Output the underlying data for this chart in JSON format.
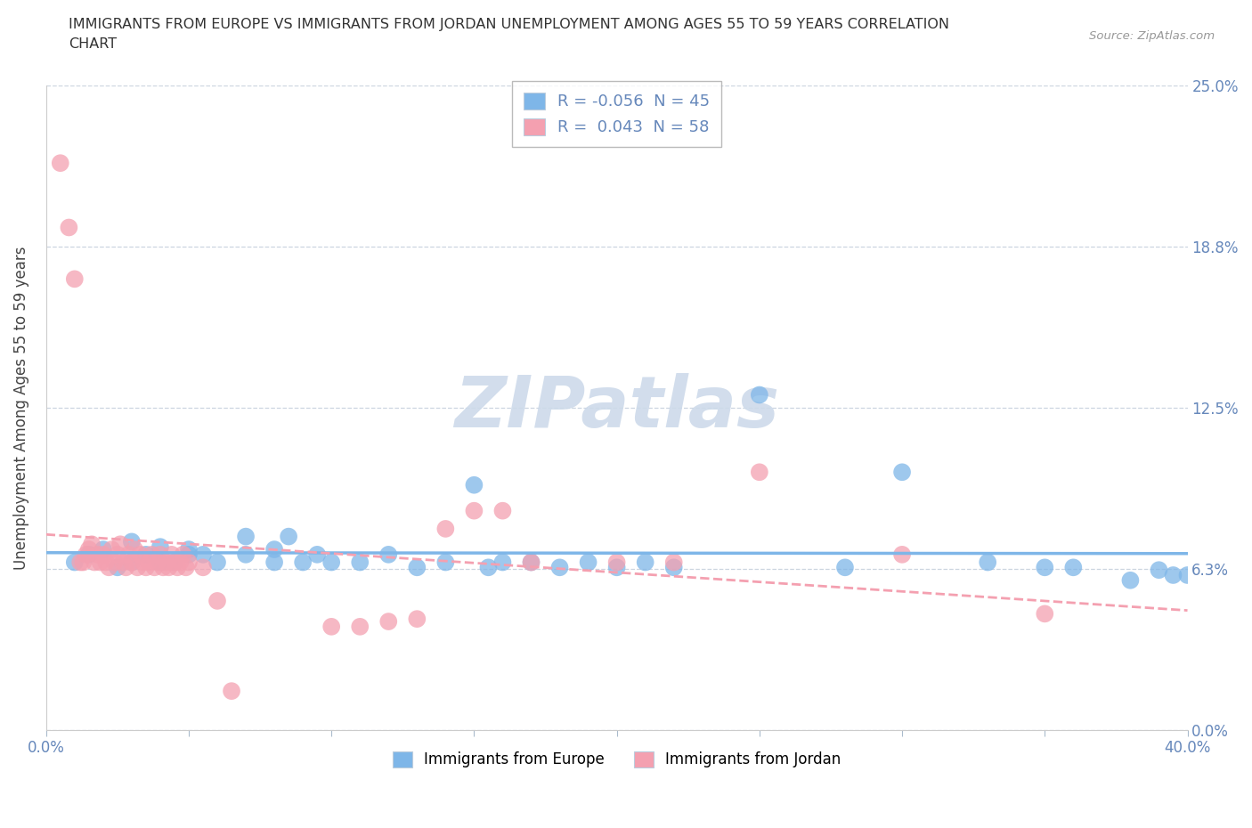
{
  "title_line1": "IMMIGRANTS FROM EUROPE VS IMMIGRANTS FROM JORDAN UNEMPLOYMENT AMONG AGES 55 TO 59 YEARS CORRELATION",
  "title_line2": "CHART",
  "source": "Source: ZipAtlas.com",
  "ylabel": "Unemployment Among Ages 55 to 59 years",
  "xlim": [
    0.0,
    0.4
  ],
  "ylim": [
    0.0,
    0.25
  ],
  "yticks": [
    0.0,
    0.0625,
    0.125,
    0.1875,
    0.25
  ],
  "ytick_labels": [
    "0.0%",
    "6.3%",
    "12.5%",
    "18.8%",
    "25.0%"
  ],
  "europe_color": "#7eb6e8",
  "jordan_color": "#f4a0b0",
  "europe_R": -0.056,
  "europe_N": 45,
  "jordan_R": 0.043,
  "jordan_N": 58,
  "watermark_color": "#cddaea",
  "grid_color": "#ccd5e0",
  "axis_color": "#6688bb",
  "title_color": "#333333",
  "europe_scatter": [
    [
      0.01,
      0.065
    ],
    [
      0.015,
      0.068
    ],
    [
      0.02,
      0.07
    ],
    [
      0.025,
      0.063
    ],
    [
      0.03,
      0.065
    ],
    [
      0.03,
      0.073
    ],
    [
      0.035,
      0.068
    ],
    [
      0.04,
      0.065
    ],
    [
      0.04,
      0.071
    ],
    [
      0.045,
      0.065
    ],
    [
      0.05,
      0.068
    ],
    [
      0.05,
      0.07
    ],
    [
      0.055,
      0.068
    ],
    [
      0.06,
      0.065
    ],
    [
      0.07,
      0.068
    ],
    [
      0.07,
      0.075
    ],
    [
      0.08,
      0.065
    ],
    [
      0.08,
      0.07
    ],
    [
      0.085,
      0.075
    ],
    [
      0.09,
      0.065
    ],
    [
      0.095,
      0.068
    ],
    [
      0.1,
      0.065
    ],
    [
      0.11,
      0.065
    ],
    [
      0.12,
      0.068
    ],
    [
      0.13,
      0.063
    ],
    [
      0.14,
      0.065
    ],
    [
      0.15,
      0.095
    ],
    [
      0.155,
      0.063
    ],
    [
      0.16,
      0.065
    ],
    [
      0.17,
      0.065
    ],
    [
      0.18,
      0.063
    ],
    [
      0.19,
      0.065
    ],
    [
      0.2,
      0.063
    ],
    [
      0.21,
      0.065
    ],
    [
      0.22,
      0.063
    ],
    [
      0.25,
      0.13
    ],
    [
      0.28,
      0.063
    ],
    [
      0.3,
      0.1
    ],
    [
      0.33,
      0.065
    ],
    [
      0.35,
      0.063
    ],
    [
      0.36,
      0.063
    ],
    [
      0.38,
      0.058
    ],
    [
      0.39,
      0.062
    ],
    [
      0.395,
      0.06
    ],
    [
      0.4,
      0.06
    ]
  ],
  "jordan_scatter": [
    [
      0.005,
      0.22
    ],
    [
      0.008,
      0.195
    ],
    [
      0.01,
      0.175
    ],
    [
      0.012,
      0.065
    ],
    [
      0.013,
      0.065
    ],
    [
      0.014,
      0.068
    ],
    [
      0.015,
      0.07
    ],
    [
      0.016,
      0.072
    ],
    [
      0.017,
      0.065
    ],
    [
      0.018,
      0.068
    ],
    [
      0.019,
      0.065
    ],
    [
      0.02,
      0.068
    ],
    [
      0.021,
      0.065
    ],
    [
      0.022,
      0.063
    ],
    [
      0.023,
      0.07
    ],
    [
      0.024,
      0.065
    ],
    [
      0.025,
      0.068
    ],
    [
      0.026,
      0.072
    ],
    [
      0.027,
      0.065
    ],
    [
      0.028,
      0.063
    ],
    [
      0.029,
      0.068
    ],
    [
      0.03,
      0.065
    ],
    [
      0.031,
      0.07
    ],
    [
      0.032,
      0.063
    ],
    [
      0.033,
      0.068
    ],
    [
      0.034,
      0.065
    ],
    [
      0.035,
      0.063
    ],
    [
      0.036,
      0.065
    ],
    [
      0.037,
      0.068
    ],
    [
      0.038,
      0.063
    ],
    [
      0.039,
      0.065
    ],
    [
      0.04,
      0.068
    ],
    [
      0.041,
      0.063
    ],
    [
      0.042,
      0.065
    ],
    [
      0.043,
      0.063
    ],
    [
      0.044,
      0.068
    ],
    [
      0.045,
      0.065
    ],
    [
      0.046,
      0.063
    ],
    [
      0.047,
      0.065
    ],
    [
      0.048,
      0.068
    ],
    [
      0.049,
      0.063
    ],
    [
      0.05,
      0.065
    ],
    [
      0.055,
      0.063
    ],
    [
      0.06,
      0.05
    ],
    [
      0.065,
      0.015
    ],
    [
      0.1,
      0.04
    ],
    [
      0.11,
      0.04
    ],
    [
      0.12,
      0.042
    ],
    [
      0.13,
      0.043
    ],
    [
      0.14,
      0.078
    ],
    [
      0.15,
      0.085
    ],
    [
      0.16,
      0.085
    ],
    [
      0.17,
      0.065
    ],
    [
      0.2,
      0.065
    ],
    [
      0.22,
      0.065
    ],
    [
      0.25,
      0.1
    ],
    [
      0.3,
      0.068
    ],
    [
      0.35,
      0.045
    ]
  ]
}
